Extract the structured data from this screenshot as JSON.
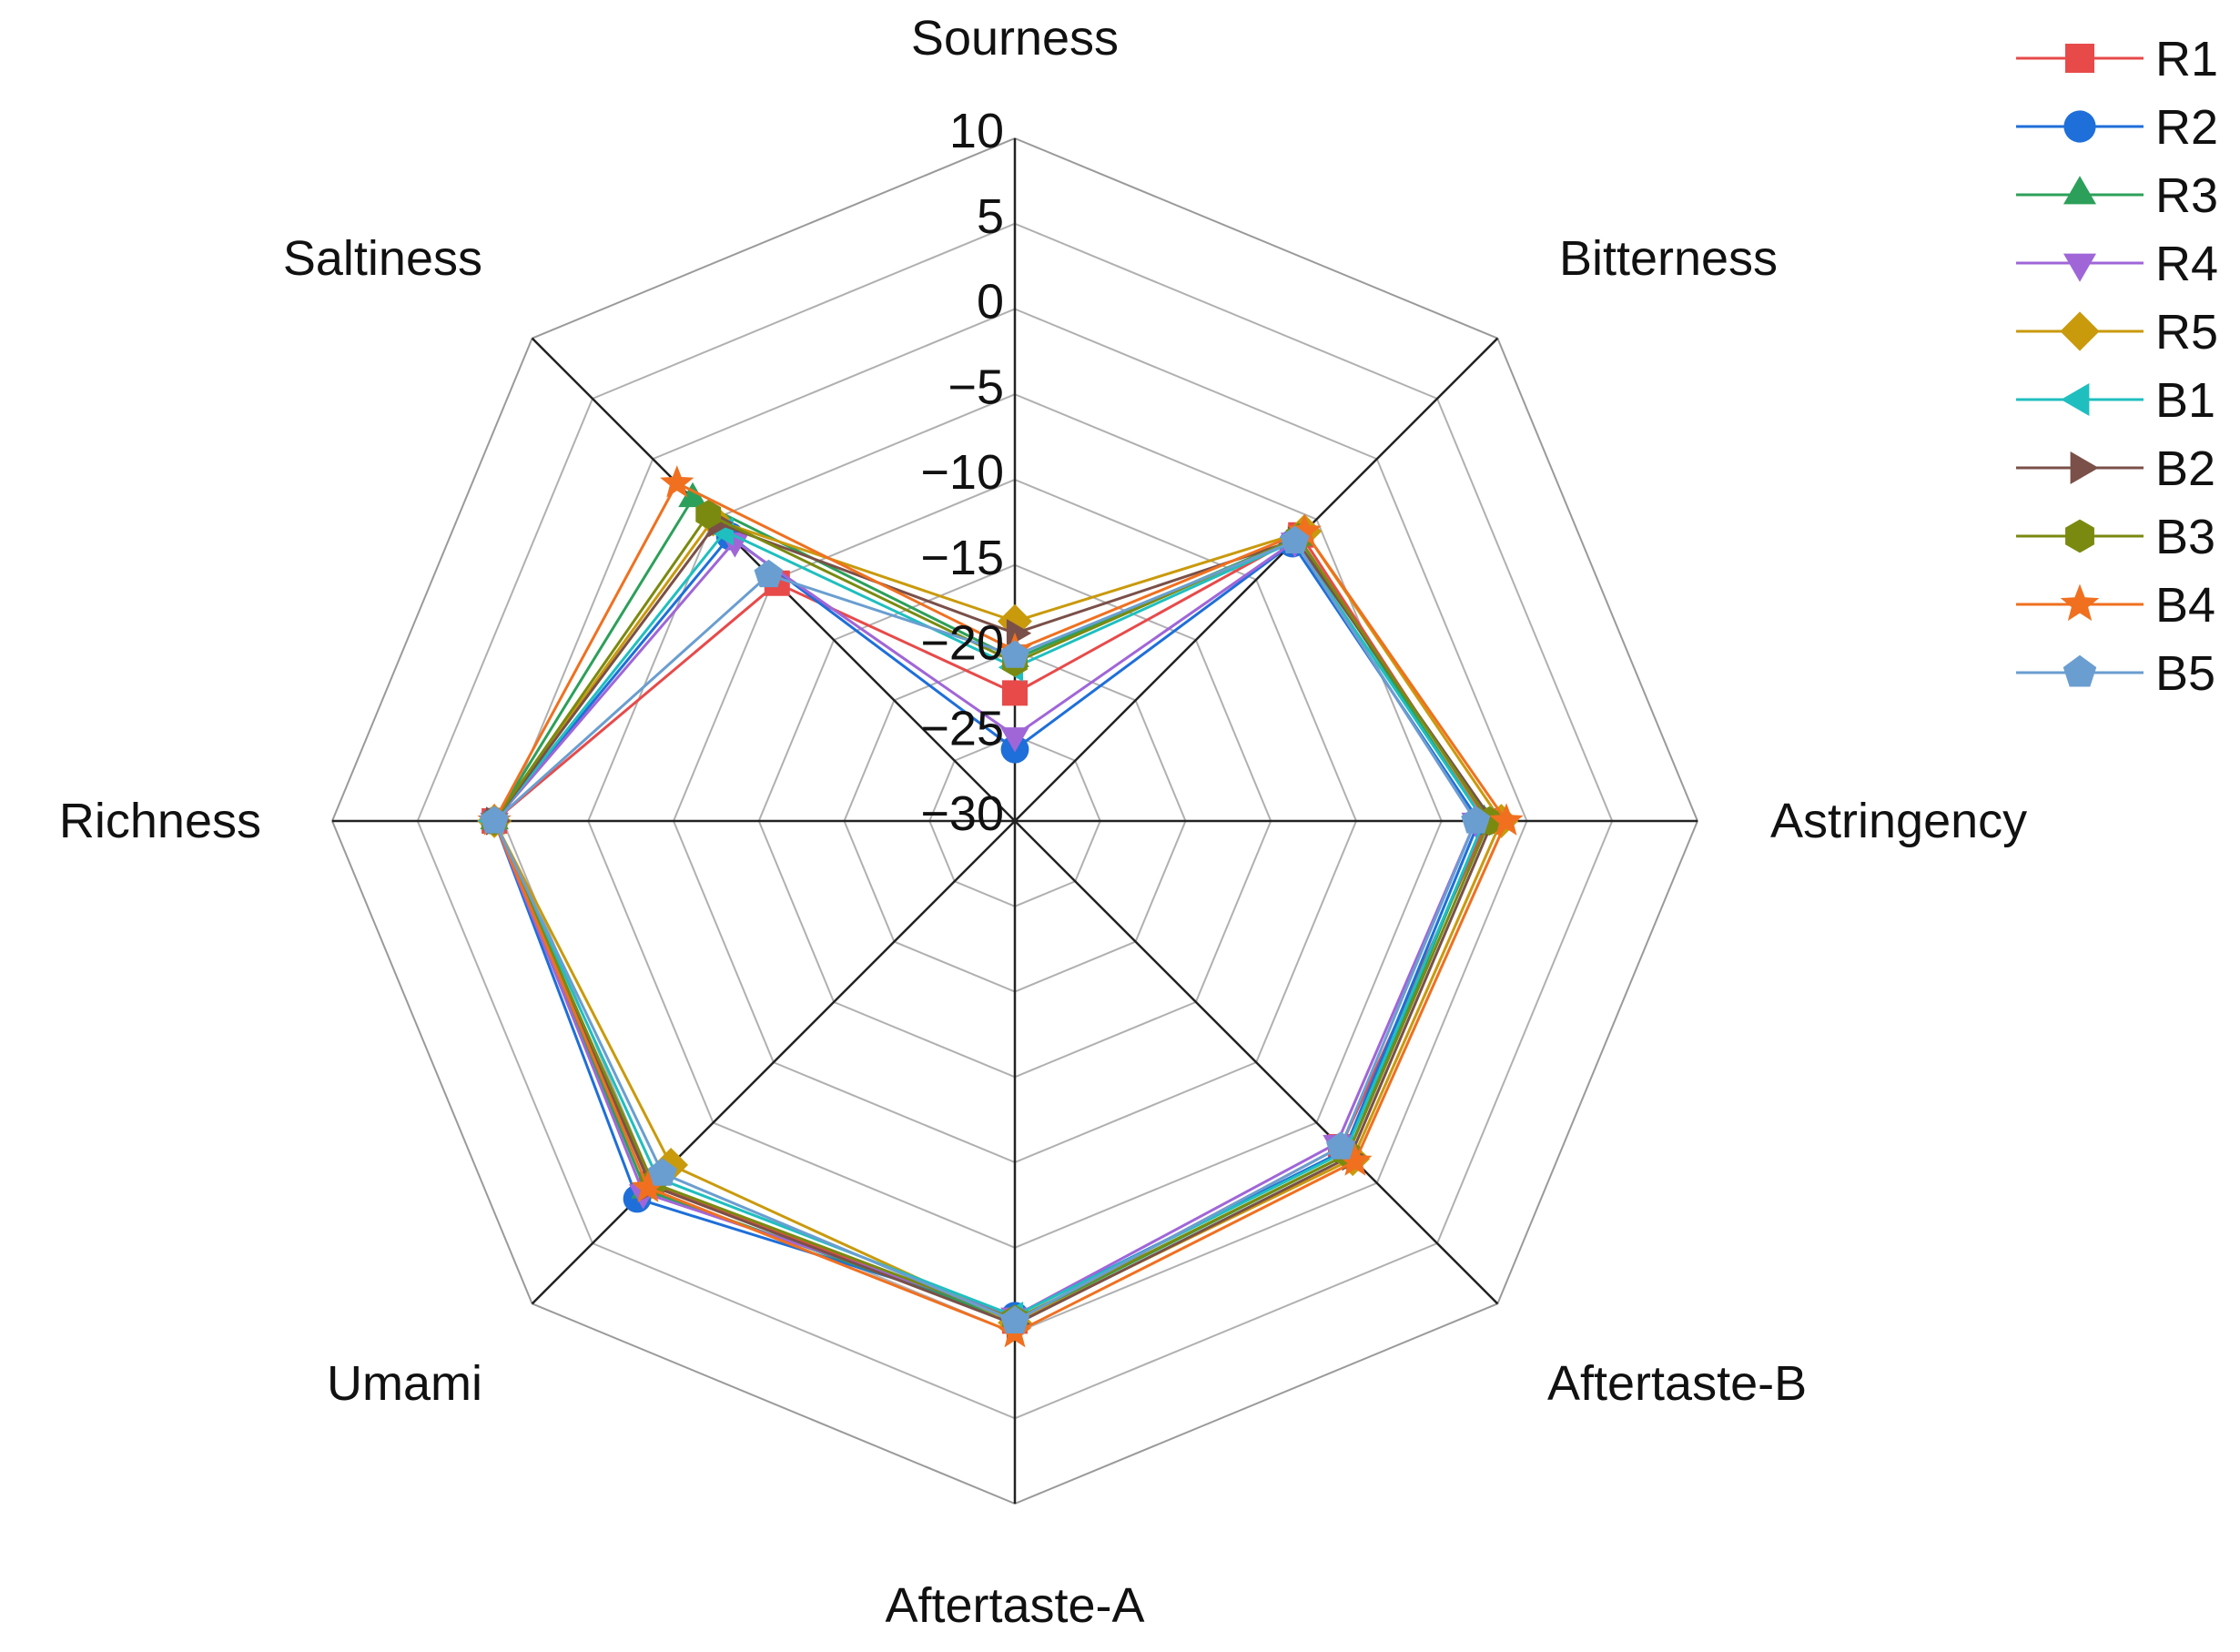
{
  "chart_data": {
    "type": "radar",
    "title": "",
    "axes": [
      "Sourness",
      "Bitterness",
      "Astringency",
      "Aftertaste-B",
      "Aftertaste-A",
      "Umami",
      "Richness",
      "Saltiness"
    ],
    "range": [
      -30,
      10
    ],
    "ticks": [
      10,
      5,
      0,
      -5,
      -10,
      -15,
      -20,
      -25,
      -30
    ],
    "tick_labels": [
      "10",
      "5",
      "0",
      "−5",
      "−10",
      "−15",
      "−20",
      "−25",
      "−30"
    ],
    "grid": true,
    "legend_position": "top-right",
    "series": [
      {
        "name": "R1",
        "color": "#e84a4a",
        "marker": "square",
        "values": [
          -22.5,
          -6.3,
          -2.3,
          -3.0,
          -0.7,
          0.1,
          0.5,
          -10.3
        ]
      },
      {
        "name": "R2",
        "color": "#1e6fd9",
        "marker": "circle",
        "values": [
          -25.8,
          -7.0,
          -2.8,
          -2.7,
          -1.0,
          1.3,
          0.5,
          -6.4
        ]
      },
      {
        "name": "R3",
        "color": "#2ca05a",
        "marker": "triangle-up",
        "values": [
          -20.5,
          -6.5,
          -2.5,
          -2.4,
          -0.7,
          0.6,
          0.5,
          -3.3
        ]
      },
      {
        "name": "R4",
        "color": "#a066d8",
        "marker": "triangle-down",
        "values": [
          -25.0,
          -6.8,
          -3.0,
          -3.3,
          -1.0,
          0.8,
          0.5,
          -6.8
        ]
      },
      {
        "name": "R5",
        "color": "#c99a0c",
        "marker": "diamond",
        "values": [
          -18.3,
          -6.0,
          -1.5,
          -2.0,
          -0.6,
          -1.5,
          0.5,
          -5.0
        ]
      },
      {
        "name": "B1",
        "color": "#1fbfbf",
        "marker": "triangle-left",
        "values": [
          -21.0,
          -6.8,
          -2.5,
          -2.6,
          -1.0,
          -0.4,
          0.5,
          -6.0
        ]
      },
      {
        "name": "B2",
        "color": "#7a5048",
        "marker": "triangle-right",
        "values": [
          -19.0,
          -6.7,
          -2.0,
          -2.2,
          -0.5,
          0.2,
          0.5,
          -5.3
        ]
      },
      {
        "name": "B3",
        "color": "#7a8a10",
        "marker": "hexagon",
        "values": [
          -20.7,
          -6.5,
          -2.2,
          -2.4,
          -0.8,
          0.0,
          0.5,
          -4.6
        ]
      },
      {
        "name": "B4",
        "color": "#f07020",
        "marker": "star",
        "values": [
          -20.0,
          -6.0,
          -1.2,
          -1.8,
          0.0,
          0.4,
          0.5,
          -2.0
        ]
      },
      {
        "name": "B5",
        "color": "#6a9ed0",
        "marker": "pentagon",
        "values": [
          -20.3,
          -6.8,
          -3.0,
          -3.0,
          -0.7,
          -0.8,
          0.5,
          -9.6
        ]
      }
    ]
  }
}
